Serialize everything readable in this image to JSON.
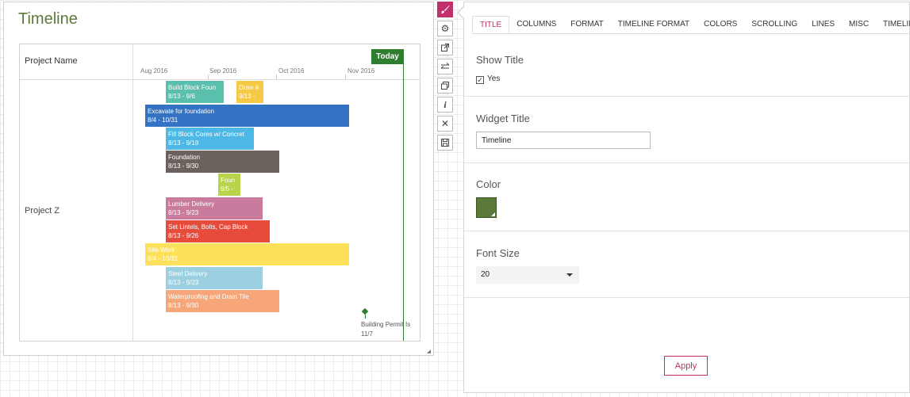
{
  "widget": {
    "title": "Timeline",
    "project_header": "Project Name",
    "project_name": "Project Z",
    "months": [
      "Aug 2016",
      "Sep 2016",
      "Oct 2016",
      "Nov 2016"
    ],
    "today_label": "Today",
    "tasks": [
      {
        "name": "Build Block Foun",
        "dates": "8/13 - 9/6",
        "color": "#5bbfad"
      },
      {
        "name": "Draw #",
        "dates": "9/13 -",
        "color": "#f5c945"
      },
      {
        "name": "Excavate for foundation",
        "dates": "8/4 - 10/31",
        "color": "#3473c4"
      },
      {
        "name": "Fill Block Cores w/ Concret",
        "dates": "8/13 - 9/19",
        "color": "#4db8e6"
      },
      {
        "name": "Foundation",
        "dates": "8/13 - 9/30",
        "color": "#6b625e"
      },
      {
        "name": "Foun",
        "dates": "9/5 -",
        "color": "#b8d44a"
      },
      {
        "name": "Lumber Delivery",
        "dates": "8/13 - 9/23",
        "color": "#c97b9e"
      },
      {
        "name": "Set Lintels, Bolts, Cap Block",
        "dates": "8/13 - 9/26",
        "color": "#e64b3c"
      },
      {
        "name": "Site Work",
        "dates": "8/4 - 10/31",
        "color": "#fde15a"
      },
      {
        "name": "Steel Delivery",
        "dates": "8/13 - 9/23",
        "color": "#9ccfe0"
      },
      {
        "name": "Waterproofing and Drain Tile",
        "dates": "8/13 - 9/30",
        "color": "#f7a67a"
      }
    ],
    "milestone": {
      "name": "Building Permit Is",
      "date": "11/7"
    }
  },
  "toolbar": [
    "paint-brush-icon",
    "gear-icon",
    "external-link-icon",
    "swap-arrows-icon",
    "copy-window-icon",
    "info-icon",
    "close-icon",
    "save-icon"
  ],
  "panel": {
    "tabs": [
      "TITLE",
      "COLUMNS",
      "FORMAT",
      "TIMELINE FORMAT",
      "COLORS",
      "SCROLLING",
      "LINES",
      "MISC",
      "TIMELINE"
    ],
    "active_tab": "TITLE",
    "show_title": {
      "label": "Show Title",
      "checkbox_label": "Yes",
      "checked": true
    },
    "widget_title": {
      "label": "Widget Title",
      "value": "Timeline"
    },
    "color": {
      "label": "Color",
      "value": "#5b7a3a"
    },
    "font_size": {
      "label": "Font Size",
      "value": "20"
    },
    "apply_label": "Apply"
  }
}
